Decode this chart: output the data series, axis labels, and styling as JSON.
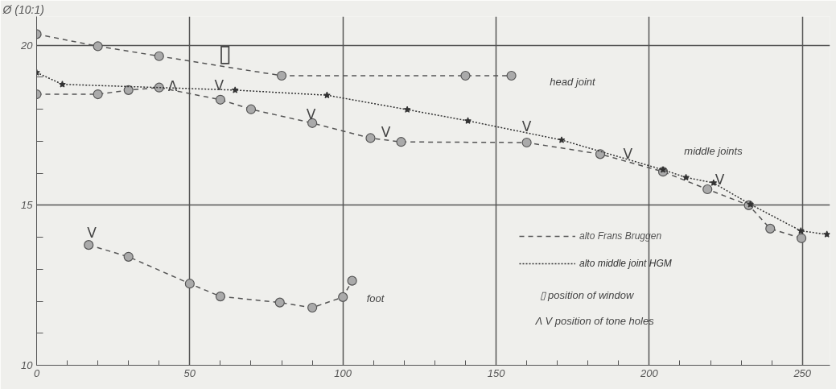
{
  "chart_data": {
    "type": "line",
    "ylabel": "Ø (10:1)",
    "xlim": [
      0,
      259
    ],
    "ylim": [
      10,
      20.9
    ],
    "xticks": [
      0,
      {
        "value": 10,
        "label": null
      },
      {
        "value": 20,
        "label": null
      },
      {
        "value": 30,
        "label": null
      },
      {
        "value": 40,
        "label": null
      },
      50,
      {
        "value": 60,
        "label": null
      },
      {
        "value": 70,
        "label": null
      },
      {
        "value": 80,
        "label": null
      },
      {
        "value": 90,
        "label": null
      },
      100,
      {
        "value": 110,
        "label": null
      },
      {
        "value": 120,
        "label": null
      },
      {
        "value": 130,
        "label": null
      },
      {
        "value": 140,
        "label": null
      },
      150,
      {
        "value": 160,
        "label": null
      },
      {
        "value": 170,
        "label": null
      },
      {
        "value": 180,
        "label": null
      },
      {
        "value": 190,
        "label": null
      },
      200,
      {
        "value": 210,
        "label": null
      },
      {
        "value": 220,
        "label": null
      },
      {
        "value": 230,
        "label": null
      },
      {
        "value": 240,
        "label": null
      },
      250
    ],
    "yticks": [
      10,
      {
        "value": 11,
        "label": null
      },
      {
        "value": 12,
        "label": null
      },
      {
        "value": 13,
        "label": null
      },
      {
        "value": 14,
        "label": null
      },
      15,
      {
        "value": 16,
        "label": null
      },
      {
        "value": 17,
        "label": null
      },
      {
        "value": 18,
        "label": null
      },
      {
        "value": 19,
        "label": null
      },
      20
    ],
    "grid": true,
    "legend": "bottom right",
    "series": [
      {
        "name": "alto Frans Bruggen",
        "color": "#555555",
        "marker": "circle",
        "line_style": "dashed",
        "x": [
          0,
          20,
          40,
          80,
          140,
          155
        ],
        "values": [
          20.35,
          19.97,
          19.66,
          19.05,
          19.05,
          19.05
        ]
      },
      {
        "color": "#555555",
        "marker": "circle",
        "line_style": "dashed",
        "x": [
          0,
          20,
          30,
          40,
          60,
          70,
          90,
          109,
          119,
          160,
          184,
          204.5,
          219,
          232.5,
          239.5,
          249.7
        ],
        "values": [
          18.47,
          18.47,
          18.6,
          18.68,
          18.3,
          18.0,
          17.57,
          17.1,
          16.98,
          16.96,
          16.6,
          16.05,
          15.5,
          15.0,
          14.27,
          13.97
        ]
      },
      {
        "color": "#555555",
        "marker": "circle",
        "line_style": "dashed",
        "x": [
          17,
          30,
          50,
          60,
          79.4,
          90,
          100,
          103
        ],
        "values": [
          13.76,
          13.39,
          12.55,
          12.15,
          11.96,
          11.8,
          12.13,
          12.64
        ]
      },
      {
        "name": "alto middle joint HGM",
        "color": "#333333",
        "marker": "star",
        "line_style": "dotted",
        "x": [
          0,
          8.4,
          64.8,
          94.8,
          121,
          140.8,
          171.4,
          204.5,
          212,
          221,
          233,
          249.5,
          258
        ],
        "values": [
          19.15,
          18.78,
          18.6,
          18.44,
          17.99,
          17.64,
          17.04,
          16.11,
          15.87,
          15.7,
          15.03,
          14.2,
          14.09
        ]
      }
    ],
    "annotations": [
      "head joint",
      "middle joints",
      "foot",
      {
        "text": "▯",
        "x": 61.5,
        "y": 19.33
      },
      {
        "text": "Λ",
        "x": 44.4,
        "y": 18.47
      },
      {
        "text": "V",
        "x": 59.6,
        "y": 18.5
      },
      {
        "text": "V",
        "x": 89.6,
        "y": 17.6
      },
      {
        "text": "V",
        "x": 114,
        "y": 17.04
      },
      {
        "text": "V",
        "x": 160,
        "y": 17.2
      },
      {
        "text": "V",
        "x": 193,
        "y": 16.36
      },
      {
        "text": "V",
        "x": 223,
        "y": 15.56
      },
      {
        "text": "V",
        "x": 18,
        "y": 13.9
      },
      "▯  position of window",
      "Λ V  position of tone holes"
    ]
  }
}
